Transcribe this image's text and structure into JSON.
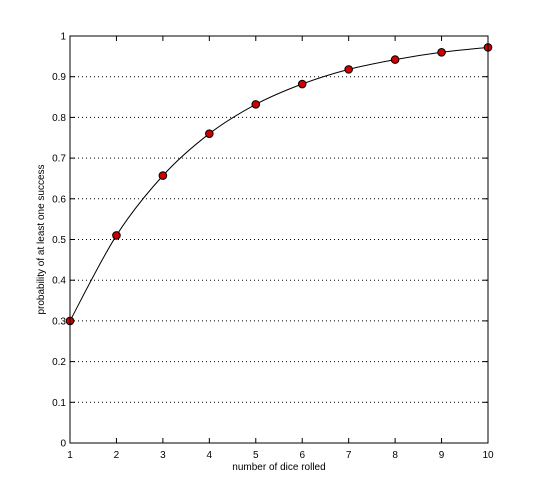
{
  "chart_data": {
    "type": "line",
    "title": "",
    "xlabel": "number of dice rolled",
    "ylabel": "probability of at least one success",
    "x": [
      1,
      2,
      3,
      4,
      5,
      6,
      7,
      8,
      9,
      10
    ],
    "series": [
      {
        "values": [
          0.3,
          0.51,
          0.657,
          0.76,
          0.832,
          0.882,
          0.918,
          0.942,
          0.96,
          0.972
        ],
        "line_color": "#000000",
        "marker_color": "#cc0000",
        "marker_edge_color": "#000000",
        "marker": "circle"
      }
    ],
    "xlim": [
      1,
      10
    ],
    "ylim": [
      0,
      1
    ],
    "xticks": [
      "1",
      "2",
      "3",
      "4",
      "5",
      "6",
      "7",
      "8",
      "9",
      "10"
    ],
    "yticks": [
      "0",
      "0.1",
      "0.2",
      "0.3",
      "0.4",
      "0.5",
      "0.6",
      "0.7",
      "0.8",
      "0.9",
      "1"
    ],
    "grid": "horizontal dotted",
    "legend": "none"
  }
}
